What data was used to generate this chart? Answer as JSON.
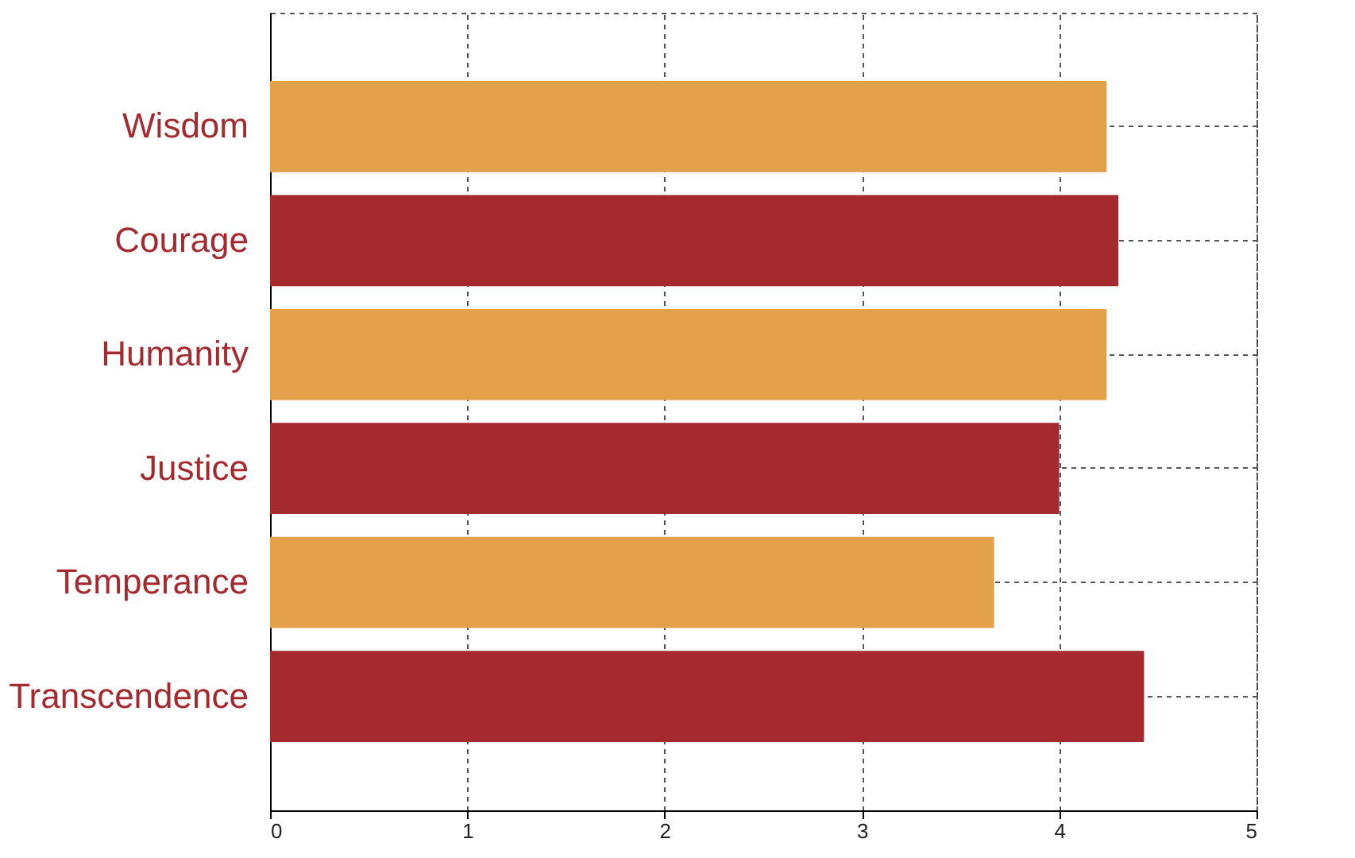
{
  "chart_data": {
    "type": "bar",
    "orientation": "horizontal",
    "categories": [
      "Wisdom",
      "Courage",
      "Humanity",
      "Justice",
      "Temperance",
      "Transcendence"
    ],
    "values": [
      4.24,
      4.3,
      4.24,
      4.0,
      3.67,
      4.43
    ],
    "colors": [
      "#e3a14b",
      "#a52a30",
      "#e3a14b",
      "#a52a30",
      "#e3a14b",
      "#a52a30"
    ],
    "xlim": [
      0,
      5
    ],
    "xticks": [
      0,
      1,
      2,
      3,
      4,
      5
    ],
    "grid": true
  }
}
